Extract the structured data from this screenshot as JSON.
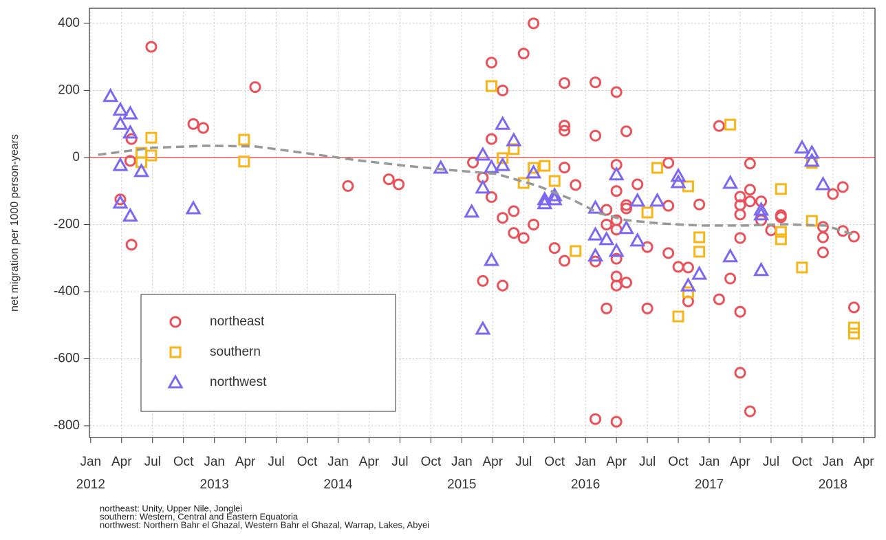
{
  "chart_data": {
    "type": "scatter",
    "ylabel": "net migration per 1000 person-years",
    "xlim": [
      2011.99,
      2018.34
    ],
    "ylim": [
      -835,
      445
    ],
    "yticks": [
      -800,
      -600,
      -400,
      -200,
      0,
      200,
      400
    ],
    "xticks": [
      {
        "value": 2012,
        "label": "Jan"
      },
      {
        "value": 2012.25,
        "label": "Apr"
      },
      {
        "value": 2012.5,
        "label": "Jul"
      },
      {
        "value": 2012.75,
        "label": "Oct"
      },
      {
        "value": 2013,
        "label": "Jan"
      },
      {
        "value": 2013.25,
        "label": "Apr"
      },
      {
        "value": 2013.5,
        "label": "Jul"
      },
      {
        "value": 2013.75,
        "label": "Oct"
      },
      {
        "value": 2014,
        "label": "Jan"
      },
      {
        "value": 2014.25,
        "label": "Apr"
      },
      {
        "value": 2014.5,
        "label": "Jul"
      },
      {
        "value": 2014.75,
        "label": "Oct"
      },
      {
        "value": 2015,
        "label": "Jan"
      },
      {
        "value": 2015.25,
        "label": "Apr"
      },
      {
        "value": 2015.5,
        "label": "Jul"
      },
      {
        "value": 2015.75,
        "label": "Oct"
      },
      {
        "value": 2016,
        "label": "Jan"
      },
      {
        "value": 2016.25,
        "label": "Apr"
      },
      {
        "value": 2016.5,
        "label": "Jul"
      },
      {
        "value": 2016.75,
        "label": "Oct"
      },
      {
        "value": 2017,
        "label": "Jan"
      },
      {
        "value": 2017.25,
        "label": "Apr"
      },
      {
        "value": 2017.5,
        "label": "Jul"
      },
      {
        "value": 2017.75,
        "label": "Oct"
      },
      {
        "value": 2018,
        "label": "Jan"
      },
      {
        "value": 2018.25,
        "label": "Apr"
      }
    ],
    "xticks_year": [
      2012,
      2013,
      2014,
      2015,
      2016,
      2017,
      2018
    ],
    "grid": true,
    "hline": {
      "value": 0,
      "color": "#d62728"
    },
    "legend": "bottom-left",
    "series": [
      {
        "name": "northeast",
        "color": "#e8535b",
        "marker": "circle",
        "x": [
          2012.49,
          2012.33,
          2012.32,
          2012.24,
          2012.33,
          2012.83,
          2012.91,
          2013.33,
          2014.08,
          2014.41,
          2014.49,
          2015.09,
          2015.17,
          2015.24,
          2015.24,
          2015.24,
          2015.17,
          2015.33,
          2015.33,
          2015.33,
          2015.42,
          2015.42,
          2015.5,
          2015.5,
          2015.58,
          2015.58,
          2015.75,
          2015.83,
          2015.83,
          2015.83,
          2015.83,
          2015.83,
          2015.92,
          2016.08,
          2016.08,
          2016.08,
          2016.08,
          2016.17,
          2016.17,
          2016.17,
          2016.25,
          2016.25,
          2016.25,
          2016.25,
          2016.25,
          2016.25,
          2016.25,
          2016.25,
          2016.25,
          2016.33,
          2016.33,
          2016.33,
          2016.33,
          2016.42,
          2016.5,
          2016.5,
          2016.67,
          2016.67,
          2016.67,
          2016.75,
          2016.83,
          2016.83,
          2016.92,
          2017.08,
          2017.08,
          2017.17,
          2017.25,
          2017.25,
          2017.25,
          2017.25,
          2017.25,
          2017.25,
          2017.33,
          2017.33,
          2017.33,
          2017.33,
          2017.42,
          2017.42,
          2017.5,
          2017.58,
          2017.58,
          2017.92,
          2017.92,
          2017.92,
          2018,
          2018.08,
          2018.08,
          2018.17,
          2018.17
        ],
        "values": [
          330,
          55,
          -10,
          -125,
          -260,
          100,
          88,
          210,
          -85,
          -65,
          -80,
          -15,
          -60,
          283,
          55,
          -118,
          -368,
          200,
          -180,
          -382,
          -160,
          -225,
          310,
          -240,
          400,
          -200,
          -270,
          222,
          95,
          80,
          -30,
          -308,
          -82,
          224,
          65,
          -310,
          -780,
          -156,
          -200,
          -450,
          195,
          -22,
          -100,
          -187,
          -215,
          -302,
          -355,
          -382,
          -788,
          78,
          -142,
          -152,
          -373,
          -80,
          -267,
          -450,
          -16,
          -144,
          -285,
          -326,
          -328,
          -429,
          -140,
          -423,
          94,
          -361,
          -117,
          -142,
          -170,
          -240,
          -460,
          -642,
          -18,
          -96,
          -131,
          -757,
          -131,
          -187,
          -217,
          -172,
          -178,
          -207,
          -238,
          -283,
          -109,
          -88,
          -219,
          -236,
          -447
        ]
      },
      {
        "name": "southern",
        "color": "#f6b619",
        "marker": "square",
        "x": [
          2012.49,
          2012.41,
          2012.41,
          2012.49,
          2013.24,
          2013.24,
          2015.24,
          2015.33,
          2015.42,
          2015.5,
          2015.58,
          2015.67,
          2015.75,
          2015.92,
          2016.5,
          2016.58,
          2016.83,
          2016.83,
          2016.75,
          2016.92,
          2016.92,
          2017.17,
          2017.58,
          2017.58,
          2017.58,
          2017.75,
          2017.83,
          2017.83,
          2018.17,
          2018.17
        ],
        "values": [
          59,
          14,
          -14,
          6,
          53,
          -12,
          213,
          -2,
          25,
          -76,
          -31,
          -25,
          -70,
          -279,
          -164,
          -31,
          -86,
          -402,
          -474,
          -238,
          -281,
          98,
          -94,
          -222,
          -244,
          -328,
          -16,
          -189,
          -507,
          -525
        ]
      },
      {
        "name": "northwest",
        "color": "#7b68ee",
        "marker": "triangle",
        "x": [
          2012.16,
          2012.24,
          2012.24,
          2012.32,
          2012.32,
          2012.24,
          2012.24,
          2012.32,
          2012.41,
          2012.83,
          2014.83,
          2015.08,
          2015.17,
          2015.17,
          2015.17,
          2015.24,
          2015.24,
          2015.33,
          2015.33,
          2015.42,
          2015.58,
          2015.67,
          2015.67,
          2015.75,
          2015.75,
          2016.08,
          2016.08,
          2016.08,
          2016.17,
          2016.25,
          2016.25,
          2016.33,
          2016.42,
          2016.42,
          2016.58,
          2016.75,
          2016.75,
          2016.83,
          2016.92,
          2017.17,
          2017.17,
          2017.42,
          2017.42,
          2017.42,
          2017.75,
          2017.83,
          2017.83,
          2017.92
        ],
        "values": [
          183,
          142,
          100,
          131,
          74,
          -23,
          -135,
          -174,
          -41,
          -152,
          -31,
          -162,
          8,
          -90,
          -511,
          -29,
          -306,
          100,
          -23,
          51,
          -45,
          -125,
          -137,
          -113,
          -125,
          -150,
          -230,
          -293,
          -244,
          -51,
          -279,
          -211,
          -129,
          -248,
          -129,
          -55,
          -74,
          -382,
          -347,
          -76,
          -295,
          -156,
          -170,
          -336,
          29,
          14,
          -10,
          -80
        ]
      }
    ],
    "trend": {
      "color": "#999999",
      "x": [
        2012.06,
        2012.5,
        2012.94,
        2013.33,
        2013.72,
        2014.11,
        2014.5,
        2014.89,
        2015.28,
        2015.61,
        2015.89,
        2016.11,
        2016.33,
        2016.61,
        2016.94,
        2017.28,
        2017.61,
        2017.94,
        2018.17
      ],
      "values": [
        8,
        29,
        35,
        33,
        14,
        -6,
        -23,
        -37,
        -49,
        -84,
        -125,
        -166,
        -187,
        -197,
        -203,
        -203,
        -199,
        -203,
        -230
      ]
    },
    "footnotes": [
      "northeast: Unity, Upper Nile, Jonglei",
      "southern: Western, Central and Eastern Equatoria",
      "northwest: Northern Bahr el Ghazal, Western Bahr el Ghazal, Warrap, Lakes, Abyei"
    ]
  }
}
